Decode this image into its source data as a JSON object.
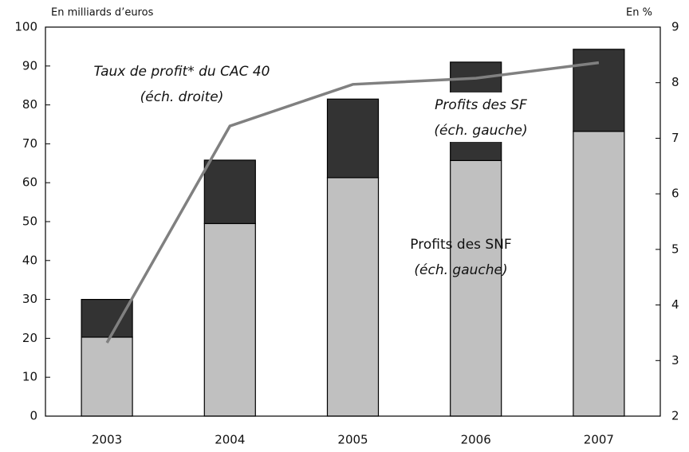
{
  "chart_data": {
    "type": "bar",
    "y_label": "En milliards d’euros",
    "y2_label": "En %",
    "categories": [
      "2003",
      "2004",
      "2005",
      "2006",
      "2007"
    ],
    "stacked": true,
    "series": [
      {
        "name": "Profits des SNF",
        "annotation": "(éch. gauche)",
        "color": "#c0c0c0",
        "values": [
          20.3,
          49.5,
          61.3,
          65.7,
          73.2
        ]
      },
      {
        "name": "Profits des SF",
        "annotation": "(éch. gauche)",
        "color": "#333333",
        "values": [
          9.7,
          16.3,
          20.2,
          25.3,
          21.1
        ]
      },
      {
        "name": "Taux de profit* du CAC 40",
        "annotation": "(éch. droite)",
        "type": "line",
        "axis": "y2",
        "color": "#808080",
        "values": [
          3.32,
          7.22,
          7.97,
          8.08,
          8.36
        ]
      }
    ],
    "ylim": [
      0,
      100
    ],
    "yticks": [
      0,
      10,
      20,
      30,
      40,
      50,
      60,
      70,
      80,
      90,
      100
    ],
    "y2lim": [
      2,
      9
    ],
    "y2ticks": [
      2,
      3,
      4,
      5,
      6,
      7,
      8,
      9
    ]
  }
}
